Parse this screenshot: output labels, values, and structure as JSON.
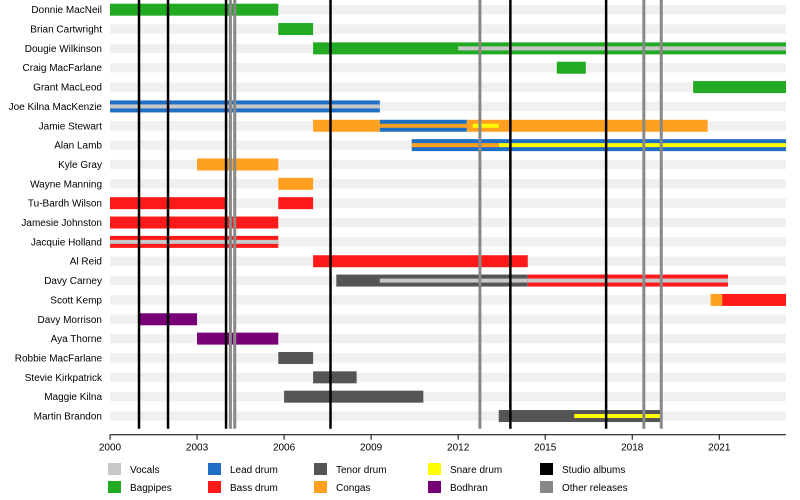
{
  "chart_data": {
    "type": "timeline",
    "title": "",
    "x_range": [
      2000,
      2023.3
    ],
    "x_ticks": [
      "2000",
      "2003",
      "2006",
      "2009",
      "2012",
      "2015",
      "2018",
      "2021"
    ],
    "members": [
      "Donnie MacNeil",
      "Brian Cartwright",
      "Dougie Wilkinson",
      "Craig MacFarlane",
      "Grant MacLeod",
      "Joe Kilna MacKenzie",
      "Jamie Stewart",
      "Alan Lamb",
      "Kyle Gray",
      "Wayne Manning",
      "Tu-Bardh Wilson",
      "Jamesie Johnston",
      "Jacquie Holland",
      "Al Reid",
      "Davy Carney",
      "Scott Kemp",
      "Davy Morrison",
      "Aya Thorne",
      "Robbie MacFarlane",
      "Stevie Kirkpatrick",
      "Maggie Kilna",
      "Martin Brandon"
    ],
    "roles": {
      "vocals": {
        "label": "Vocals",
        "color": "#c8c8c8"
      },
      "bagpipes": {
        "label": "Bagpipes",
        "color": "#22aa22"
      },
      "lead_drum": {
        "label": "Lead drum",
        "color": "#1f6fc4"
      },
      "bass_drum": {
        "label": "Bass drum",
        "color": "#ff1a1a"
      },
      "tenor_drum": {
        "label": "Tenor drum",
        "color": "#555555"
      },
      "congas": {
        "label": "Congas",
        "color": "#ffa020"
      },
      "snare_drum": {
        "label": "Snare drum",
        "color": "#ffff00"
      },
      "bodhran": {
        "label": "Bodhran",
        "color": "#770077"
      },
      "studio_albums": {
        "label": "Studio albums",
        "color": "#000000"
      },
      "other_releases": {
        "label": "Other releases",
        "color": "#888888"
      }
    },
    "bars": [
      {
        "member": 0,
        "role": "bagpipes",
        "start": 2000.0,
        "end": 2005.8,
        "style": "full"
      },
      {
        "member": 1,
        "role": "bagpipes",
        "start": 2005.8,
        "end": 2007.0,
        "style": "full"
      },
      {
        "member": 2,
        "role": "bagpipes",
        "start": 2007.0,
        "end": 2023.3,
        "style": "full"
      },
      {
        "member": 2,
        "role": "vocals",
        "start": 2012.0,
        "end": 2023.3,
        "style": "center"
      },
      {
        "member": 3,
        "role": "bagpipes",
        "start": 2015.4,
        "end": 2016.4,
        "style": "full"
      },
      {
        "member": 4,
        "role": "bagpipes",
        "start": 2020.1,
        "end": 2023.3,
        "style": "full"
      },
      {
        "member": 5,
        "role": "lead_drum",
        "start": 2000.0,
        "end": 2009.3,
        "style": "full"
      },
      {
        "member": 5,
        "role": "vocals",
        "start": 2000.0,
        "end": 2009.3,
        "style": "center"
      },
      {
        "member": 6,
        "role": "congas",
        "start": 2007.0,
        "end": 2009.3,
        "style": "full"
      },
      {
        "member": 6,
        "role": "lead_drum",
        "start": 2009.3,
        "end": 2012.3,
        "style": "full"
      },
      {
        "member": 6,
        "role": "congas",
        "start": 2009.3,
        "end": 2012.3,
        "style": "center"
      },
      {
        "member": 6,
        "role": "congas",
        "start": 2012.3,
        "end": 2020.6,
        "style": "full"
      },
      {
        "member": 6,
        "role": "snare_drum",
        "start": 2012.5,
        "end": 2013.4,
        "style": "center"
      },
      {
        "member": 7,
        "role": "lead_drum",
        "start": 2010.4,
        "end": 2023.3,
        "style": "full"
      },
      {
        "member": 7,
        "role": "snare_drum",
        "start": 2013.4,
        "end": 2023.3,
        "style": "center"
      },
      {
        "member": 7,
        "role": "congas",
        "start": 2010.4,
        "end": 2013.4,
        "style": "center"
      },
      {
        "member": 8,
        "role": "congas",
        "start": 2003.0,
        "end": 2005.8,
        "style": "full"
      },
      {
        "member": 9,
        "role": "congas",
        "start": 2005.8,
        "end": 2007.0,
        "style": "full"
      },
      {
        "member": 10,
        "role": "bass_drum",
        "start": 2000.0,
        "end": 2004.0,
        "style": "full"
      },
      {
        "member": 10,
        "role": "bass_drum",
        "start": 2005.8,
        "end": 2007.0,
        "style": "full"
      },
      {
        "member": 11,
        "role": "bass_drum",
        "start": 2000.0,
        "end": 2005.8,
        "style": "full"
      },
      {
        "member": 12,
        "role": "bass_drum",
        "start": 2000.0,
        "end": 2005.8,
        "style": "full"
      },
      {
        "member": 12,
        "role": "vocals",
        "start": 2000.0,
        "end": 2005.8,
        "style": "center"
      },
      {
        "member": 13,
        "role": "bass_drum",
        "start": 2007.0,
        "end": 2014.4,
        "style": "full"
      },
      {
        "member": 14,
        "role": "tenor_drum",
        "start": 2007.8,
        "end": 2014.4,
        "style": "full"
      },
      {
        "member": 14,
        "role": "vocals",
        "start": 2009.3,
        "end": 2014.4,
        "style": "center"
      },
      {
        "member": 14,
        "role": "bass_drum",
        "start": 2014.4,
        "end": 2021.3,
        "style": "full"
      },
      {
        "member": 14,
        "role": "vocals",
        "start": 2014.4,
        "end": 2021.3,
        "style": "center"
      },
      {
        "member": 15,
        "role": "congas",
        "start": 2020.7,
        "end": 2021.1,
        "style": "full"
      },
      {
        "member": 15,
        "role": "bass_drum",
        "start": 2021.1,
        "end": 2023.3,
        "style": "full"
      },
      {
        "member": 16,
        "role": "bodhran",
        "start": 2001.0,
        "end": 2003.0,
        "style": "full"
      },
      {
        "member": 17,
        "role": "bodhran",
        "start": 2003.0,
        "end": 2005.8,
        "style": "full"
      },
      {
        "member": 18,
        "role": "tenor_drum",
        "start": 2005.8,
        "end": 2007.0,
        "style": "full"
      },
      {
        "member": 19,
        "role": "tenor_drum",
        "start": 2007.0,
        "end": 2008.5,
        "style": "full"
      },
      {
        "member": 20,
        "role": "tenor_drum",
        "start": 2006.0,
        "end": 2010.8,
        "style": "full"
      },
      {
        "member": 21,
        "role": "tenor_drum",
        "start": 2013.4,
        "end": 2019.0,
        "style": "full"
      },
      {
        "member": 21,
        "role": "snare_drum",
        "start": 2016.0,
        "end": 2019.0,
        "style": "center"
      }
    ],
    "studio_albums": [
      2001.0,
      2002.0,
      2004.0,
      2007.6,
      2013.8,
      2017.1
    ],
    "other_releases": [
      2004.15,
      2004.3,
      2012.75,
      2018.4,
      2019.0
    ],
    "legend_order": [
      "vocals",
      "lead_drum",
      "tenor_drum",
      "snare_drum",
      "studio_albums",
      "bagpipes",
      "bass_drum",
      "congas",
      "bodhran",
      "other_releases"
    ]
  }
}
